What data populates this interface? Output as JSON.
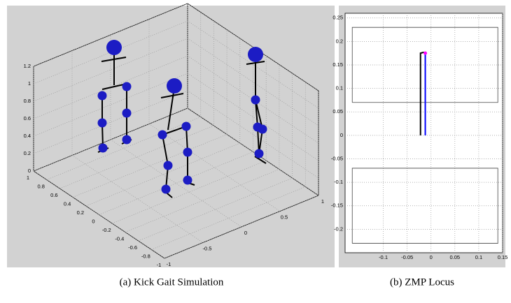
{
  "chart_data": [
    {
      "type": "3d",
      "caption": "(a) Kick Gait Simulation",
      "xlim": [
        -1,
        1
      ],
      "ylim": [
        -1,
        1
      ],
      "zlim": [
        0,
        1.2
      ],
      "xticks": [
        -1,
        -0.5,
        0,
        0.5,
        1
      ],
      "yticks": [
        -1,
        -0.8,
        -0.6,
        -0.4,
        -0.2,
        0,
        0.2,
        0.4,
        0.6,
        0.8,
        1
      ],
      "zticks": [
        0,
        0.2,
        0.4,
        0.6,
        0.8,
        1,
        1.2
      ],
      "grid": true,
      "color": "#1c1cc4"
    },
    {
      "type": "line",
      "caption": "(b) ZMP Locus",
      "xlim": [
        -0.18,
        0.15
      ],
      "ylim": [
        -0.25,
        0.26
      ],
      "xticks": [
        -0.1,
        -0.05,
        0,
        0.05,
        0.1,
        0.15
      ],
      "yticks": [
        -0.2,
        -0.15,
        -0.1,
        -0.05,
        0,
        0.05,
        0.1,
        0.15,
        0.2,
        0.25
      ],
      "grid": true,
      "series": [
        {
          "color": "#444444",
          "x": [
            -0.165,
            0.14,
            0.14,
            -0.165,
            -0.165
          ],
          "y": [
            0.07,
            0.07,
            0.23,
            0.23,
            0.07
          ]
        },
        {
          "color": "#444444",
          "x": [
            -0.165,
            0.14,
            0.14,
            -0.165,
            -0.165
          ],
          "y": [
            -0.23,
            -0.23,
            -0.07,
            -0.07,
            -0.23
          ]
        },
        {
          "color": "#000000",
          "x": [
            -0.022,
            -0.022,
            -0.015
          ],
          "y": [
            0,
            0.175,
            0.177
          ]
        },
        {
          "color": "#0000ff",
          "x": [
            -0.012,
            -0.012
          ],
          "y": [
            0,
            0.172
          ]
        },
        {
          "color": "#ff00ff",
          "x": [
            -0.012
          ],
          "y": [
            0.175
          ],
          "marker": true
        }
      ]
    }
  ]
}
